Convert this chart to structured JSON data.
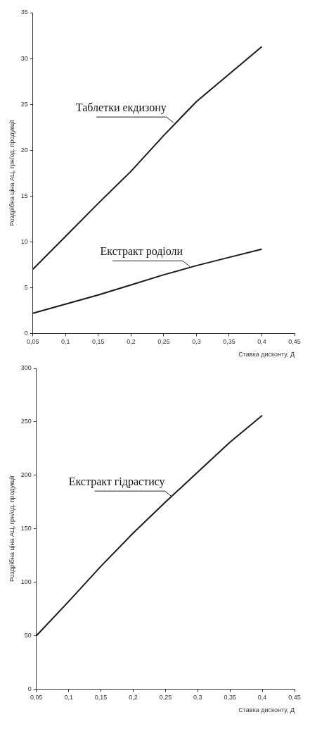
{
  "chart_data": [
    {
      "type": "line",
      "xlabel": "Ставка дисконту, Д",
      "ylabel": "Роздрібна ціна АЦ, грн/од. продукції",
      "x": [
        0.05,
        0.1,
        0.15,
        0.2,
        0.25,
        0.3,
        0.35,
        0.4
      ],
      "series": [
        {
          "color": "#1a1a1a",
          "values": [
            7,
            10.6,
            14.2,
            17.7,
            21.6,
            25.3,
            28.3,
            31.3
          ]
        },
        {
          "color": "#1a1a1a",
          "values": [
            2.2,
            3.2,
            4.2,
            5.3,
            6.4,
            7.4,
            8.3,
            9.2
          ]
        }
      ],
      "xlim": [
        0.05,
        0.45
      ],
      "xticks": [
        {
          "value": 0.05,
          "label": "0,05"
        },
        {
          "value": 0.1,
          "label": "0,1"
        },
        {
          "value": 0.15,
          "label": "0,15"
        },
        {
          "value": 0.2,
          "label": "0,2"
        },
        {
          "value": 0.25,
          "label": "0,25"
        },
        {
          "value": 0.3,
          "label": "0,3"
        },
        {
          "value": 0.35,
          "label": "0,35"
        },
        {
          "value": 0.4,
          "label": "0,4"
        },
        {
          "value": 0.45,
          "label": "0,45"
        }
      ],
      "ylim": [
        0,
        35
      ],
      "yticks": [
        0,
        5,
        10,
        15,
        20,
        25,
        30,
        35
      ],
      "annotations": [
        {
          "text": "Таблетки екдизону",
          "x": 0.265,
          "y": 23
        },
        {
          "text": "Екстракт родіоли",
          "x": 0.29,
          "y": 7.3
        }
      ],
      "marker": "none",
      "line_style": "solid",
      "legend": false
    },
    {
      "type": "line",
      "xlabel": "Ставка дисконту, Д",
      "ylabel": "Роздрібна ціна АЦ, грн/од. продукції",
      "x": [
        0.05,
        0.1,
        0.15,
        0.2,
        0.25,
        0.3,
        0.35,
        0.4
      ],
      "series": [
        {
          "color": "#1a1a1a",
          "values": [
            50,
            82,
            115,
            146,
            175,
            203,
            231,
            256
          ]
        }
      ],
      "xlim": [
        0.05,
        0.45
      ],
      "xticks": [
        {
          "value": 0.05,
          "label": "0,05"
        },
        {
          "value": 0.1,
          "label": "0,1"
        },
        {
          "value": 0.15,
          "label": "0,15"
        },
        {
          "value": 0.2,
          "label": "0,2"
        },
        {
          "value": 0.25,
          "label": "0,25"
        },
        {
          "value": 0.3,
          "label": "0,3"
        },
        {
          "value": 0.35,
          "label": "0,35"
        },
        {
          "value": 0.4,
          "label": "0,4"
        },
        {
          "value": 0.45,
          "label": "0,45"
        }
      ],
      "ylim": [
        0,
        300
      ],
      "yticks": [
        0,
        50,
        100,
        150,
        200,
        250,
        300
      ],
      "annotations": [
        {
          "text": "Екстракт гідрастису",
          "x": 0.26,
          "y": 180
        }
      ],
      "marker": "none",
      "line_style": "solid",
      "legend": false
    }
  ]
}
